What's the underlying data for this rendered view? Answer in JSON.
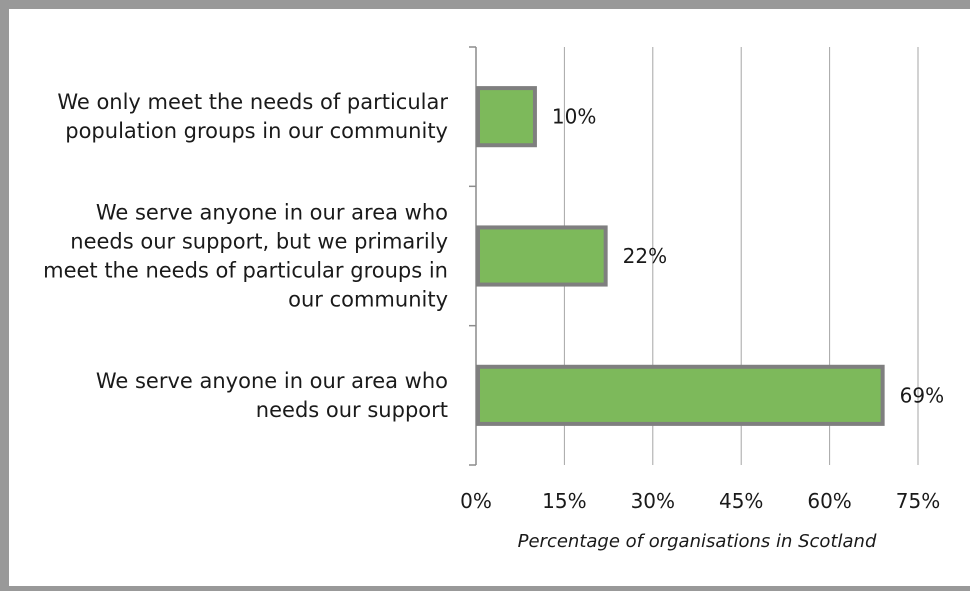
{
  "chart_data": {
    "type": "bar",
    "orientation": "horizontal",
    "categories": [
      "We only meet the needs of particular population groups in our community",
      "We serve anyone in our area who needs our support, but we primarily meet the needs of particular groups in our community",
      "We serve anyone in our area who needs our support"
    ],
    "category_lines": [
      [
        "We only meet the needs of particular",
        "population groups in our community"
      ],
      [
        "We serve anyone in our area who",
        "needs our support, but we primarily",
        "meet the needs of particular groups in",
        "our community"
      ],
      [
        "We serve anyone in our area who",
        "needs our support"
      ]
    ],
    "values": [
      10,
      22,
      69
    ],
    "value_labels": [
      "10%",
      "22%",
      "69%"
    ],
    "xlabel": "Percentage of organisations in Scotland",
    "ylabel": "",
    "xlim": [
      0,
      75
    ],
    "xticks": [
      0,
      15,
      30,
      45,
      60,
      75
    ],
    "xtick_labels": [
      "0%",
      "15%",
      "30%",
      "45%",
      "60%",
      "75%"
    ],
    "grid": true,
    "legend": "none",
    "colors": {
      "bar_fill": "#7db95b",
      "bar_border": "#7f7f7f",
      "gridline": "#a6a6a6",
      "axis": "#8c8c8c",
      "frame": "#999999"
    }
  }
}
